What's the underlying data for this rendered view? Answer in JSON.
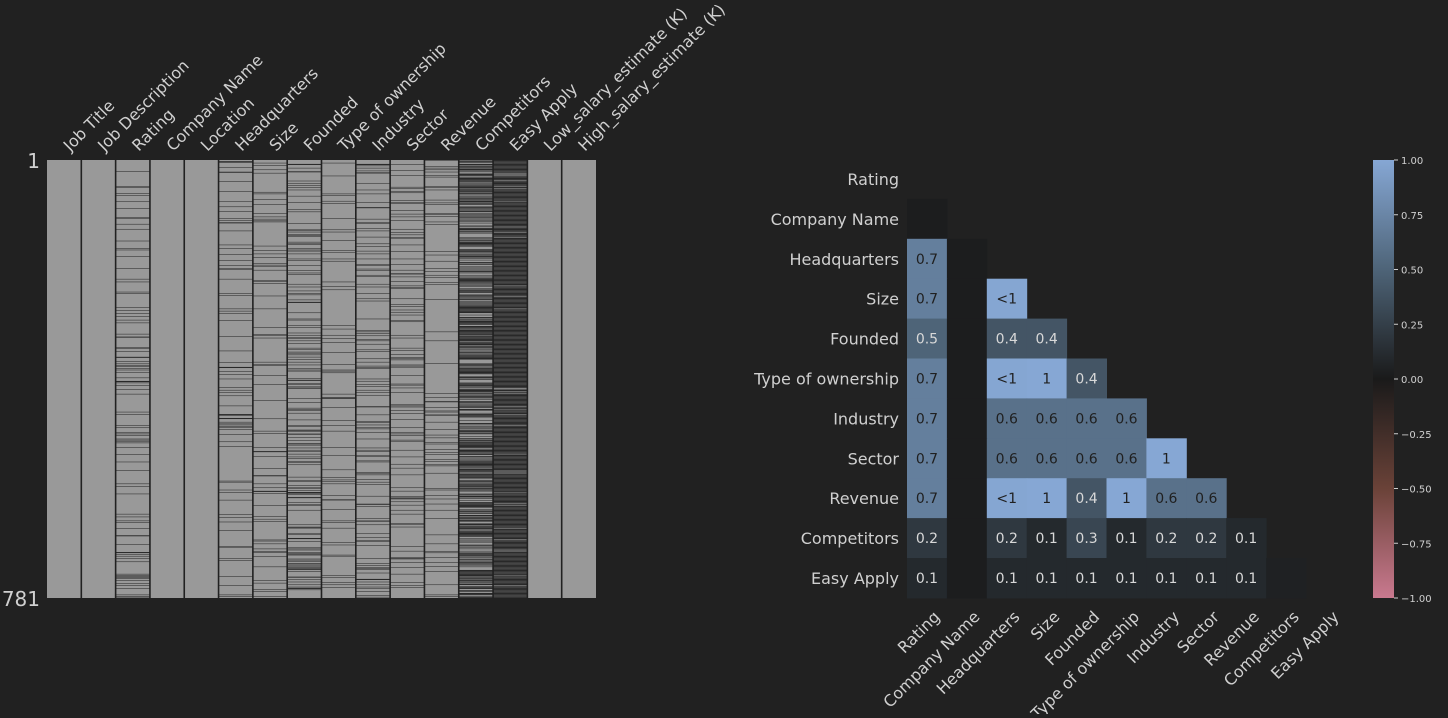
{
  "colors": {
    "background": "#212121",
    "present": "#999999",
    "missing": "#222222",
    "text": "#d0d0d0",
    "cell_text_dark": "#202020",
    "cell_text_light": "#d8d8d8",
    "colormap": [
      "#c9798f",
      "#5a3528",
      "#1a1a1a",
      "#2c3b47",
      "#86a7d4"
    ]
  },
  "chart_data": [
    {
      "type": "heatmap",
      "kind": "missingness-matrix",
      "columns": [
        "Job Title",
        "Job Description",
        "Rating",
        "Company Name",
        "Location",
        "Headquarters",
        "Size",
        "Founded",
        "Type of ownership",
        "Industry",
        "Sector",
        "Revenue",
        "Competitors",
        "Easy Apply",
        "Low_salary_estimate (K)",
        "High_salary_estimate (K)"
      ],
      "row_labels": [
        "1",
        "781"
      ],
      "nrows": 781,
      "missing_share": [
        0,
        0,
        0.12,
        0,
        0,
        0.08,
        0.08,
        0.22,
        0.08,
        0.12,
        0.12,
        0.08,
        0.62,
        0.96,
        0,
        0
      ]
    },
    {
      "type": "heatmap",
      "kind": "nullity-correlation",
      "rows": [
        "Rating",
        "Company Name",
        "Headquarters",
        "Size",
        "Founded",
        "Type of ownership",
        "Industry",
        "Sector",
        "Revenue",
        "Competitors",
        "Easy Apply"
      ],
      "columns": [
        "Rating",
        "Company Name",
        "Headquarters",
        "Size",
        "Founded",
        "Type of ownership",
        "Industry",
        "Sector",
        "Revenue",
        "Competitors",
        "Easy Apply"
      ],
      "values": [
        [],
        [
          0.02
        ],
        [
          0.7,
          0.02
        ],
        [
          0.7,
          0.02,
          0.99
        ],
        [
          0.5,
          0.02,
          0.4,
          0.4
        ],
        [
          0.7,
          0.02,
          0.99,
          1,
          0.4
        ],
        [
          0.7,
          0.02,
          0.6,
          0.6,
          0.6,
          0.6
        ],
        [
          0.7,
          0.02,
          0.6,
          0.6,
          0.6,
          0.6,
          1
        ],
        [
          0.7,
          0.02,
          0.99,
          1,
          0.4,
          1,
          0.6,
          0.6
        ],
        [
          0.2,
          0.02,
          0.2,
          0.1,
          0.3,
          0.1,
          0.2,
          0.2,
          0.1
        ],
        [
          0.1,
          0.02,
          0.1,
          0.1,
          0.1,
          0.1,
          0.1,
          0.1,
          0.1,
          0.05
        ]
      ],
      "labels": [
        [],
        [
          ""
        ],
        [
          "0.7",
          ""
        ],
        [
          "0.7",
          "",
          "<1"
        ],
        [
          "0.5",
          "",
          "0.4",
          "0.4"
        ],
        [
          "0.7",
          "",
          "<1",
          "1",
          "0.4"
        ],
        [
          "0.7",
          "",
          "0.6",
          "0.6",
          "0.6",
          "0.6"
        ],
        [
          "0.7",
          "",
          "0.6",
          "0.6",
          "0.6",
          "0.6",
          "1"
        ],
        [
          "0.7",
          "",
          "<1",
          "1",
          "0.4",
          "1",
          "0.6",
          "0.6"
        ],
        [
          "0.2",
          "",
          "0.2",
          "0.1",
          "0.3",
          "0.1",
          "0.2",
          "0.2",
          "0.1"
        ],
        [
          "0.1",
          "",
          "0.1",
          "0.1",
          "0.1",
          "0.1",
          "0.1",
          "0.1",
          "0.1",
          ""
        ]
      ],
      "colorbar": {
        "range": [
          -1,
          1
        ],
        "ticks": [
          1.0,
          0.75,
          0.5,
          0.25,
          0.0,
          -0.25,
          -0.5,
          -0.75,
          -1.0
        ],
        "tick_labels": [
          "1.00",
          "0.75",
          "0.50",
          "0.25",
          "0.00",
          "−0.25",
          "−0.50",
          "−0.75",
          "−1.00"
        ]
      }
    }
  ]
}
